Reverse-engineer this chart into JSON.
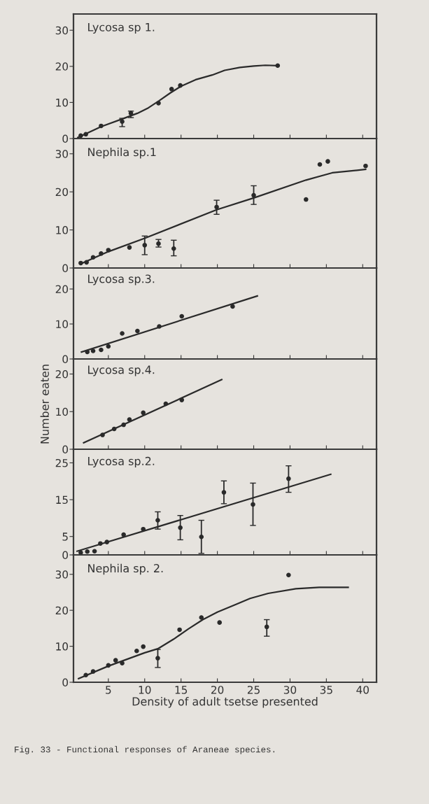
{
  "chart_data": [
    {
      "type": "scatter",
      "title": "Lycosa sp 1.",
      "xlim": [
        0.2,
        41.9
      ],
      "ylim": [
        0,
        34.5
      ],
      "xticks": [
        5,
        10,
        15,
        20,
        25,
        30,
        35,
        40
      ],
      "yticks": [
        0,
        10,
        20,
        30
      ],
      "tick_labels": "y",
      "series": [
        {
          "marker": "circle",
          "color": "#2a2a2a",
          "x": [
            1.2,
            1.9,
            4,
            6.9,
            8.1,
            11.9,
            13.7,
            14.9,
            28.3
          ],
          "values": [
            0.8,
            1.2,
            3.5,
            4.7,
            7,
            9.8,
            13.7,
            14.7,
            20.2
          ],
          "errors": [
            null,
            null,
            null,
            [
              3.3,
              5.6
            ],
            [
              5.8,
              7.6
            ],
            null,
            null,
            null,
            null
          ]
        },
        {
          "type": "line",
          "marker": "none",
          "color": "#2a2a2a",
          "x": [
            0.8,
            4,
            7,
            9,
            10.5,
            12,
            13.5,
            15,
            17,
            19.3,
            21,
            23.1,
            25,
            26.6,
            28.3
          ],
          "values": [
            0.3,
            3.3,
            5.5,
            7,
            8.5,
            10.5,
            12.6,
            14.5,
            16.3,
            17.6,
            18.9,
            19.7,
            20.1,
            20.3,
            20.2
          ]
        }
      ]
    },
    {
      "type": "scatter",
      "title": "Nephila sp.1",
      "xlim": [
        0.2,
        41.9
      ],
      "ylim": [
        0,
        34
      ],
      "xticks": [
        5,
        10,
        15,
        20,
        25,
        30,
        35,
        40
      ],
      "yticks": [
        0,
        10,
        20,
        30
      ],
      "tick_labels": "y",
      "series": [
        {
          "marker": "circle",
          "color": "#2a2a2a",
          "x": [
            1.2,
            2,
            2.9,
            4,
            5,
            7.9,
            10,
            11.9,
            14,
            19.9,
            25,
            32.2,
            34.1,
            35.2,
            40.4
          ],
          "values": [
            1.3,
            1.5,
            2.8,
            3.8,
            4.7,
            5.4,
            6,
            6.4,
            5.1,
            16,
            19.1,
            18,
            27.2,
            28,
            26.8
          ],
          "errors": [
            null,
            null,
            null,
            null,
            null,
            null,
            [
              3.5,
              8.4
            ],
            [
              5.5,
              7.5
            ],
            [
              3.2,
              7.3
            ],
            [
              14.1,
              17.8
            ],
            [
              16.7,
              21.6
            ],
            null,
            null,
            null,
            null
          ]
        },
        {
          "type": "line",
          "marker": "none",
          "color": "#2a2a2a",
          "x": [
            1.2,
            5,
            10,
            19.9,
            25,
            32.2,
            35.8,
            40.4
          ],
          "values": [
            1.1,
            4.3,
            7.8,
            15.3,
            18.4,
            23.1,
            25,
            25.9
          ]
        }
      ]
    },
    {
      "type": "scatter",
      "title": "Lycosa sp.3.",
      "xlim": [
        0.2,
        41.9
      ],
      "ylim": [
        0,
        26
      ],
      "xticks": [
        5,
        10,
        15,
        20,
        25,
        30,
        35,
        40
      ],
      "yticks": [
        0,
        10,
        20
      ],
      "tick_labels": "y",
      "series": [
        {
          "marker": "circle",
          "color": "#2a2a2a",
          "x": [
            2.1,
            2.9,
            4,
            5,
            6.9,
            9,
            12,
            15.1,
            22.1
          ],
          "values": [
            2,
            2.3,
            2.6,
            3.6,
            7.3,
            8,
            9.3,
            12.2,
            15
          ]
        },
        {
          "type": "line",
          "marker": "none",
          "color": "#2a2a2a",
          "x": [
            1.3,
            25.5
          ],
          "values": [
            2,
            18
          ]
        }
      ]
    },
    {
      "type": "scatter",
      "title": "Lycosa sp.4.",
      "ylabel": "Number eaten",
      "xlim": [
        0.2,
        41.9
      ],
      "ylim": [
        0,
        24
      ],
      "xticks": [
        5,
        10,
        15,
        20,
        25,
        30,
        35,
        40
      ],
      "yticks": [
        0,
        10,
        20
      ],
      "tick_labels": "y",
      "series": [
        {
          "marker": "circle",
          "color": "#2a2a2a",
          "x": [
            4.2,
            5.8,
            7.1,
            7.9,
            9.8,
            12.9,
            15.1
          ],
          "values": [
            3.8,
            5.4,
            6.5,
            7.9,
            9.7,
            12.1,
            13.1
          ]
        },
        {
          "type": "line",
          "marker": "none",
          "color": "#2a2a2a",
          "x": [
            1.6,
            20.6
          ],
          "values": [
            1.7,
            18.5
          ]
        }
      ]
    },
    {
      "type": "scatter",
      "title": "Lycosa sp.2.",
      "xlim": [
        0.2,
        41.9
      ],
      "ylim": [
        0,
        28.7
      ],
      "xticks": [
        5,
        10,
        15,
        20,
        25,
        30,
        35,
        40
      ],
      "yticks": [
        0,
        5,
        15,
        25
      ],
      "tick_labels": "y",
      "series": [
        {
          "marker": "circle",
          "color": "#2a2a2a",
          "x": [
            1.2,
            2.1,
            3.1,
            3.9,
            4.8,
            7.1,
            9.8,
            11.8,
            14.9,
            17.8,
            20.9,
            24.9,
            29.8
          ],
          "values": [
            0.6,
            0.9,
            1,
            3.1,
            3.5,
            5.5,
            7,
            9.4,
            7.4,
            4.9,
            17,
            13.7,
            20.7
          ],
          "errors": [
            null,
            null,
            null,
            null,
            null,
            null,
            null,
            [
              7,
              11.7
            ],
            [
              4.1,
              10.7
            ],
            [
              0.4,
              9.4
            ],
            [
              13.9,
              20.1
            ],
            [
              8,
              19.5
            ],
            [
              17,
              24.2
            ]
          ]
        },
        {
          "type": "line",
          "marker": "none",
          "color": "#2a2a2a",
          "x": [
            0.7,
            35.6
          ],
          "values": [
            1,
            21.9
          ]
        }
      ]
    },
    {
      "type": "scatter",
      "title": "Nephila sp. 2.",
      "xlabel": "Density of adult tsetse presented",
      "xlim": [
        0.2,
        41.9
      ],
      "ylim": [
        0,
        35.4
      ],
      "xticks": [
        5,
        10,
        15,
        20,
        25,
        30,
        35,
        40
      ],
      "yticks": [
        0,
        10,
        20,
        30
      ],
      "annotations": [
        "Fig. 33 - Functional responses of Araneae species."
      ],
      "series": [
        {
          "marker": "circle",
          "color": "#2a2a2a",
          "x": [
            1.9,
            2.9,
            5,
            6,
            6.9,
            8.9,
            9.8,
            11.8,
            14.8,
            17.8,
            20.3,
            26.8,
            29.8
          ],
          "values": [
            2,
            3,
            4.7,
            6.1,
            5.3,
            8.7,
            9.9,
            6.7,
            14.6,
            18,
            16.6,
            15.4,
            29.8
          ],
          "errors": [
            null,
            null,
            null,
            null,
            null,
            null,
            null,
            [
              4.1,
              9.1
            ],
            null,
            null,
            null,
            [
              12.8,
              17.4
            ],
            null
          ]
        },
        {
          "type": "line",
          "marker": "none",
          "color": "#2a2a2a",
          "x": [
            0.9,
            5,
            10,
            11.8,
            14,
            16,
            18,
            20,
            22.5,
            24.5,
            27,
            30.8,
            34,
            38
          ],
          "values": [
            1,
            4.5,
            8.2,
            9.3,
            12,
            14.8,
            17.4,
            19.5,
            21.6,
            23.3,
            24.7,
            26,
            26.4,
            26.4
          ]
        }
      ]
    }
  ]
}
